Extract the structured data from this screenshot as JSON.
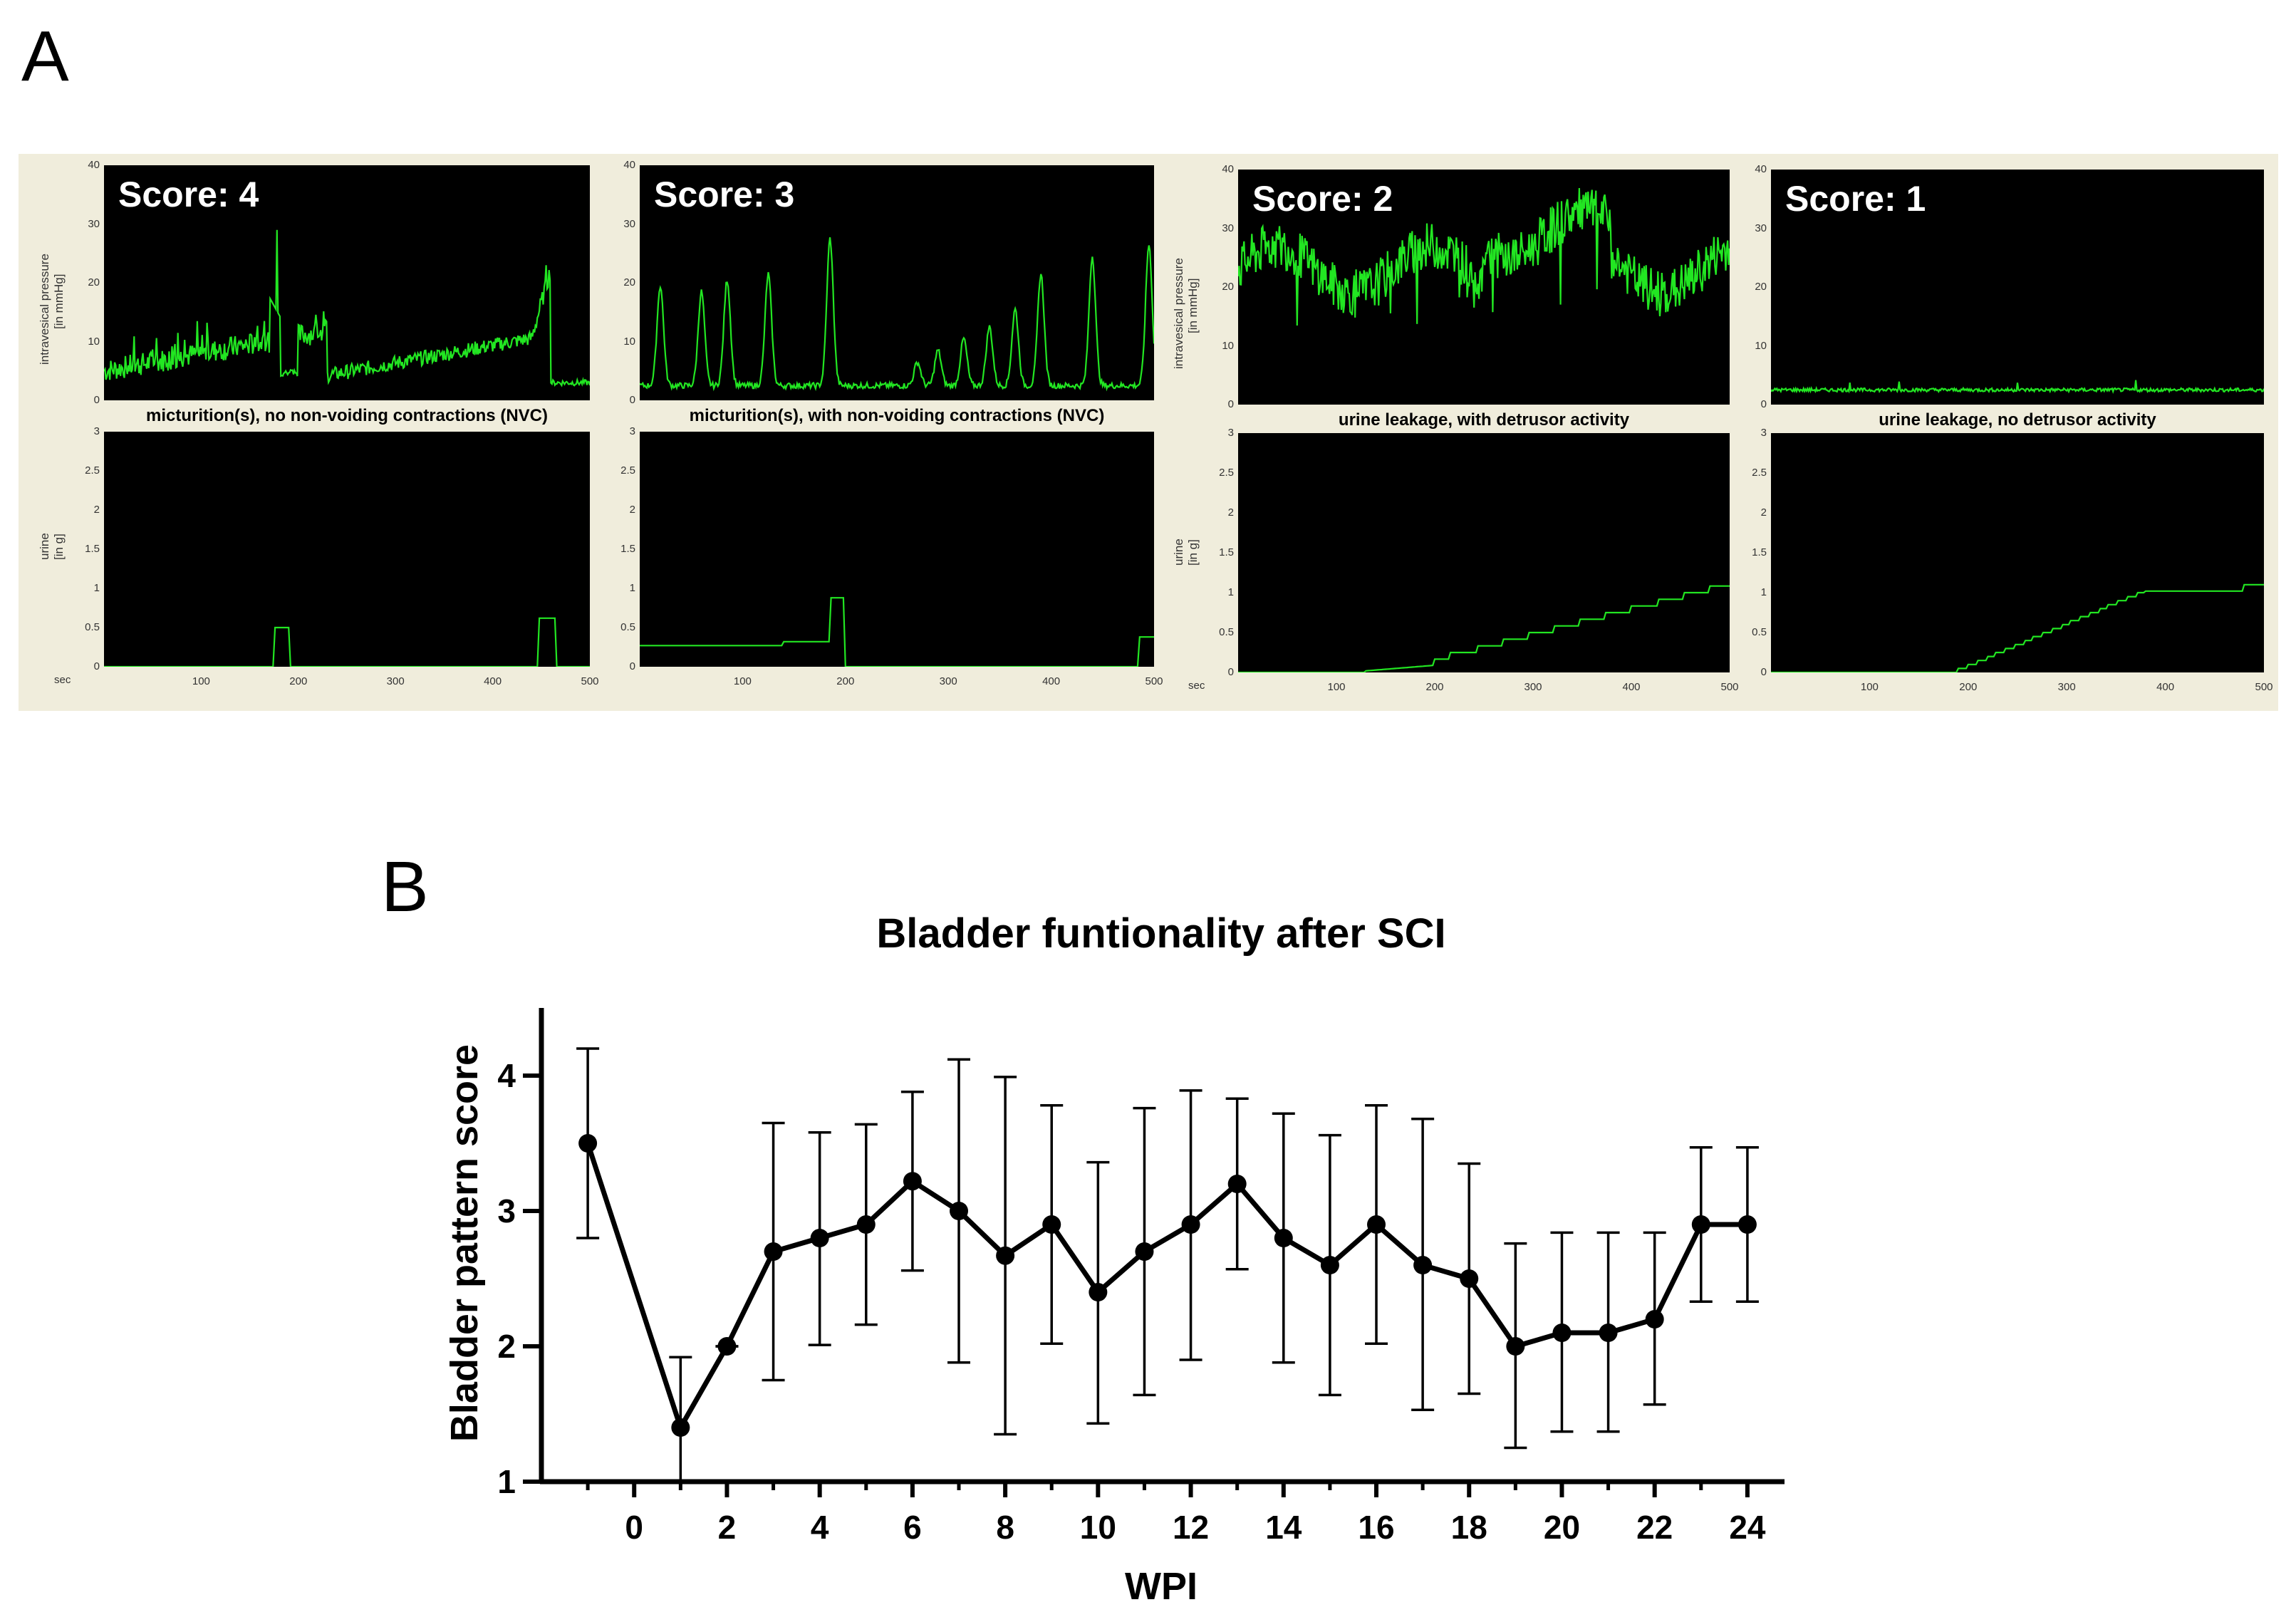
{
  "panel_a": {
    "letter": "A",
    "pressure_label_line1": "intravesical pressure",
    "pressure_label_line2": "[in mmHg]",
    "urine_label_line1": "urine",
    "urine_label_line2": "[in g]",
    "sec_label": "sec",
    "pressure_ticks": [
      "0",
      "10",
      "20",
      "30",
      "40"
    ],
    "urine_ticks": [
      "0",
      "0.5",
      "1",
      "1.5",
      "2",
      "2.5",
      "3"
    ],
    "time_ticks": [
      "100",
      "200",
      "300",
      "400",
      "500"
    ],
    "panels": [
      {
        "score_label": "Score: 4",
        "caption": "micturition(s), no non-voiding contractions (NVC)",
        "pattern": "score4"
      },
      {
        "score_label": "Score: 3",
        "caption": "micturition(s), with non-voiding contractions (NVC)",
        "pattern": "score3"
      },
      {
        "score_label": "Score: 2",
        "caption": "urine leakage, with detrusor activity",
        "pattern": "score2"
      },
      {
        "score_label": "Score: 1",
        "caption": "urine leakage, no detrusor activity",
        "pattern": "score1"
      }
    ],
    "trace_color": "#22e622",
    "frame_color": "#f0eddc"
  },
  "panel_b": {
    "letter": "B"
  },
  "chart_data": {
    "type": "line",
    "title": "Bladder funtionality after SCI",
    "xlabel": "WPI",
    "ylabel": "Bladder pattern score",
    "xlim": [
      -2,
      24.8
    ],
    "ylim": [
      1,
      4.5
    ],
    "xticks": [
      0,
      2,
      4,
      6,
      8,
      10,
      12,
      14,
      16,
      18,
      20,
      22,
      24
    ],
    "yticks": [
      1,
      2,
      3,
      4
    ],
    "series": [
      {
        "name": "Bladder pattern score",
        "x": [
          -1,
          1,
          2,
          3,
          4,
          5,
          6,
          7,
          8,
          9,
          10,
          11,
          12,
          13,
          14,
          15,
          16,
          17,
          18,
          19,
          20,
          21,
          22,
          23,
          24
        ],
        "y": [
          3.5,
          1.4,
          2.0,
          2.7,
          2.8,
          2.9,
          3.22,
          3.0,
          2.67,
          2.9,
          2.4,
          2.7,
          2.9,
          3.2,
          2.8,
          2.6,
          2.9,
          2.6,
          2.5,
          2.0,
          2.1,
          2.1,
          2.2,
          2.9,
          2.9
        ],
        "err_upper": [
          4.2,
          1.92,
          2.0,
          3.65,
          3.58,
          3.64,
          3.88,
          4.12,
          3.99,
          3.78,
          3.36,
          3.76,
          3.89,
          3.83,
          3.72,
          3.56,
          3.78,
          3.68,
          3.35,
          2.76,
          2.84,
          2.84,
          2.84,
          3.47,
          3.47
        ],
        "err_lower": [
          2.8,
          1.0,
          2.0,
          1.75,
          2.01,
          2.16,
          2.56,
          1.88,
          1.35,
          2.02,
          1.43,
          1.64,
          1.9,
          2.57,
          1.88,
          1.64,
          2.02,
          1.53,
          1.65,
          1.25,
          1.37,
          1.37,
          1.57,
          2.33,
          2.33
        ]
      }
    ],
    "color": "#000000"
  }
}
